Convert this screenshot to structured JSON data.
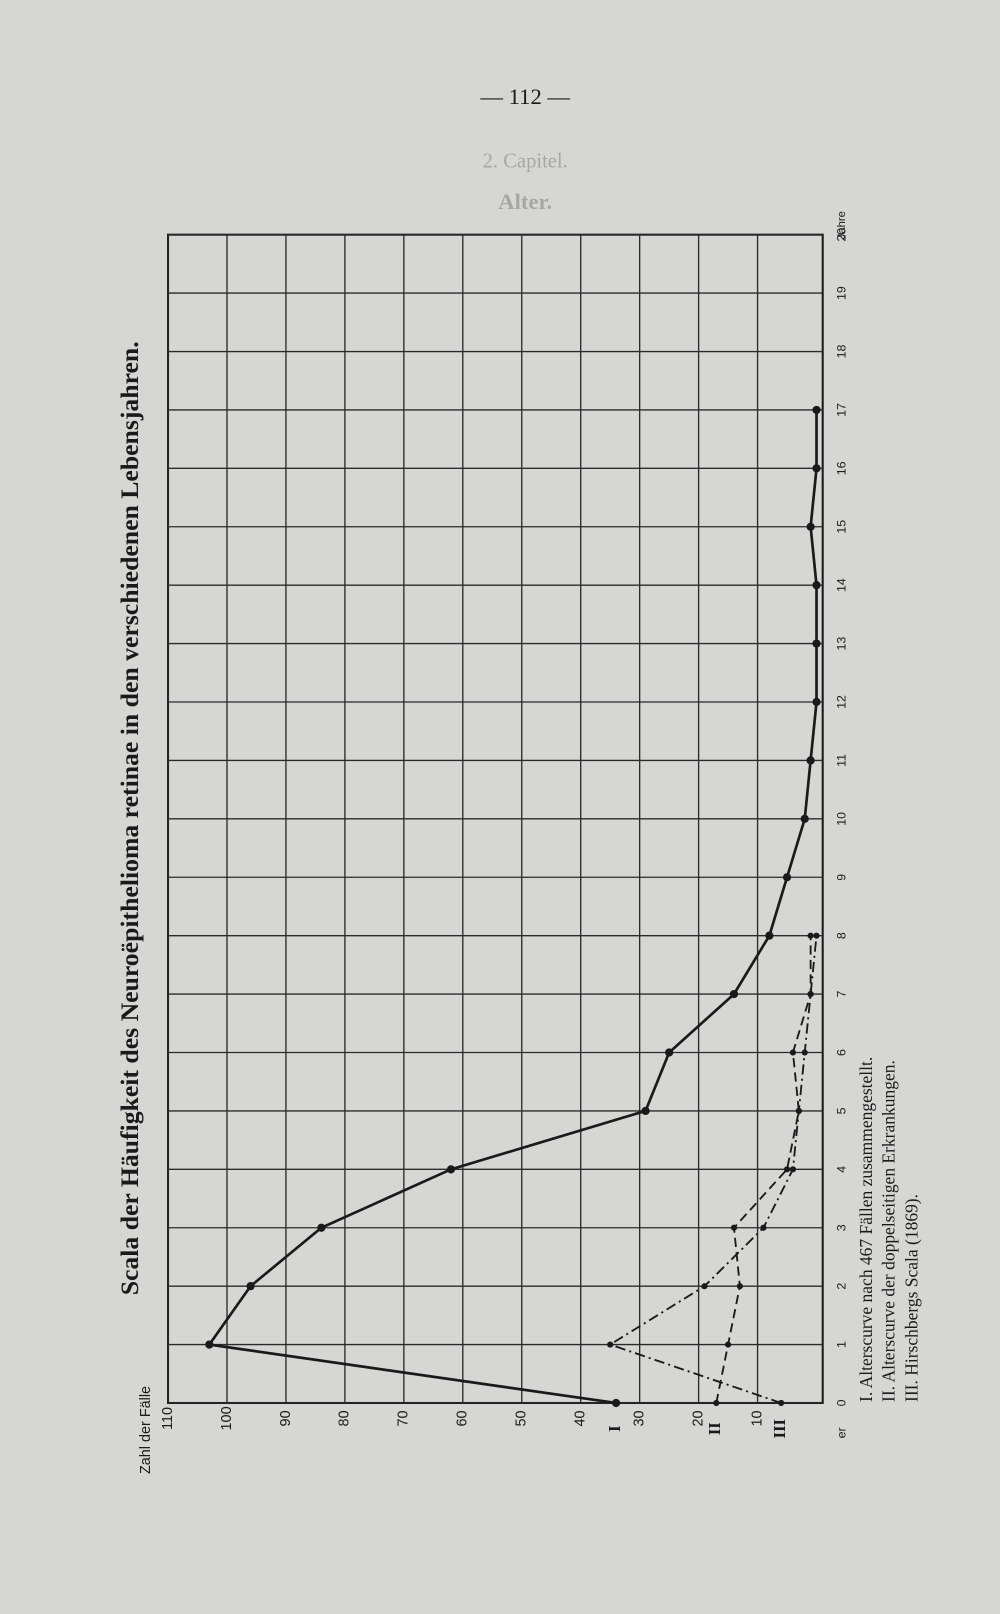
{
  "page_number": "— 112 —",
  "faded_heading": [
    "2. Capitel.",
    "Alter."
  ],
  "chart_data": {
    "type": "line",
    "title": "Scala der Häufigkeit des Neuroëpithelioma retinae in den verschiedenen Lebensjahren.",
    "y_label": "Zahl der Fälle",
    "x_label": "Jahre",
    "annotations": [
      "er"
    ],
    "x": [
      0,
      1,
      2,
      3,
      4,
      5,
      6,
      7,
      8,
      9,
      10,
      11,
      12,
      13,
      14,
      15,
      16,
      17,
      18,
      19,
      20
    ],
    "xlim": [
      0,
      20
    ],
    "xticks": [
      0,
      1,
      2,
      3,
      4,
      5,
      6,
      7,
      8,
      9,
      10,
      11,
      12,
      13,
      14,
      15,
      16,
      17,
      18,
      19,
      20
    ],
    "ylim": [
      0,
      110
    ],
    "yticks": [
      10,
      20,
      30,
      40,
      50,
      60,
      70,
      80,
      90,
      100,
      110
    ],
    "grid": true,
    "orientation": "rotated",
    "series": [
      {
        "name": "I. Alterscurve nach 467 Fällen zusammengestellt.",
        "label": "I",
        "color": "#1a1a1a",
        "style": "solid",
        "values": [
          34,
          103,
          96,
          84,
          62,
          29,
          25,
          14,
          8,
          5,
          2,
          1,
          0,
          0,
          0,
          1,
          0,
          0,
          null,
          null,
          null
        ]
      },
      {
        "name": "II. Alterscurve der doppelseitigen Erkrankungen.",
        "label": "II",
        "color": "#1a1a1a",
        "style": "dashed",
        "values": [
          17,
          15,
          13,
          14,
          5,
          3,
          4,
          1,
          1,
          null,
          null,
          null,
          null,
          null,
          null,
          null,
          null,
          null,
          null,
          null,
          null
        ]
      },
      {
        "name": "III. Hirschbergs Scala (1869).",
        "label": "III",
        "color": "#1a1a1a",
        "style": "dashdot",
        "values": [
          6,
          35,
          19,
          9,
          4,
          3,
          2,
          1,
          0,
          null,
          null,
          null,
          null,
          null,
          null,
          null,
          null,
          null,
          null,
          null,
          null
        ]
      }
    ]
  }
}
